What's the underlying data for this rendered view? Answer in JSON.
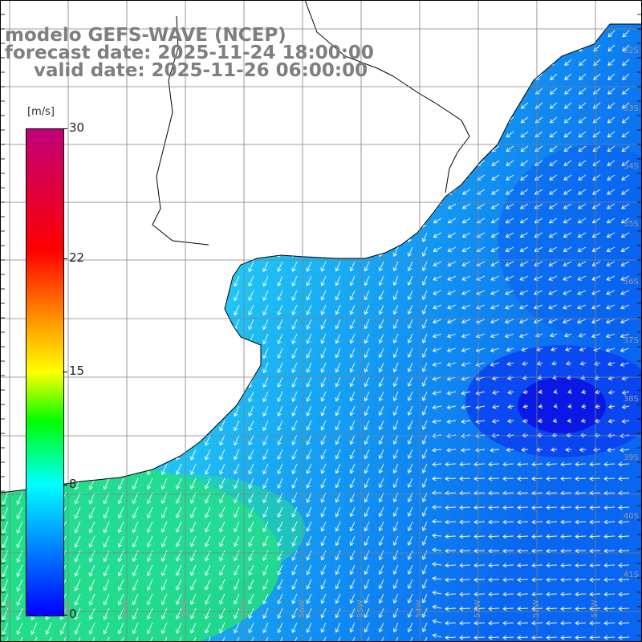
{
  "title": {
    "model": "modelo GEFS-WAVE (NCEP)",
    "forecast": "forecast date: 2025-11-24 18:00:00",
    "valid": "valid date: 2025-11-26 06:00:00"
  },
  "colorbar": {
    "unit": "[m/s]",
    "min": 0,
    "max": 30,
    "ticks": [
      "30",
      "22",
      "15",
      "8",
      "0"
    ],
    "tick_values": [
      30,
      22,
      15,
      8,
      0
    ],
    "colors": [
      "#0000ff",
      "#00aaff",
      "#00ffff",
      "#00ff00",
      "#ffff00",
      "#ff8800",
      "#ff0000",
      "#cc0088"
    ]
  },
  "map": {
    "lat_labels": [
      "32S",
      "33S",
      "34S",
      "35S",
      "36S",
      "37S",
      "38S",
      "39S",
      "40S",
      "41S"
    ],
    "lon_labels": [
      "61W",
      "60W",
      "59W",
      "58W",
      "57W",
      "56W",
      "55W",
      "54W",
      "53W",
      "52W",
      "51W"
    ],
    "land_color": "#ffffff",
    "grid_color": "#808080",
    "arrow_color": "#ffffff"
  }
}
